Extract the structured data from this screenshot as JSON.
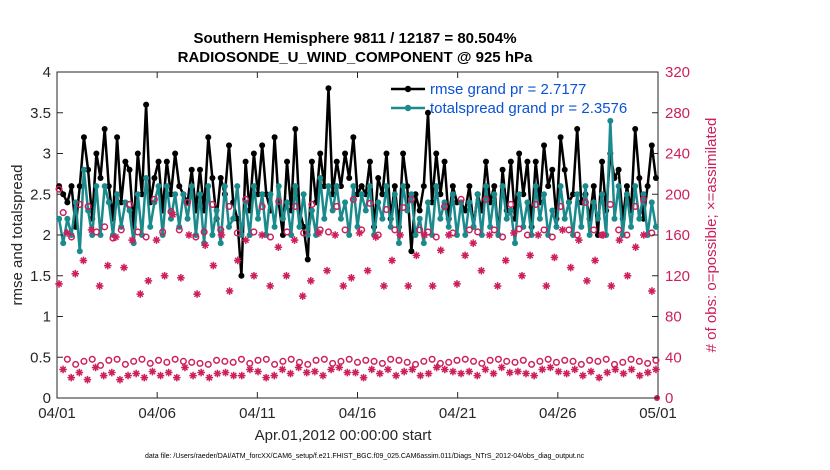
{
  "chart_data": {
    "type": "line",
    "title": "Southern Hemisphere 9811 / 12187 = 80.504%",
    "subtitle": "RADIOSONDE_U_WIND_COMPONENT @ 925 hPa",
    "xlabel": "Apr.01,2012 00:00:00 start",
    "ylabel": "rmse and totalspread",
    "ylabel_right": "# of obs: o=possible; ×=assimilated",
    "footnote": "data file: /Users/raeder/DAI/ATM_forcXX/CAM6_setup/f.e21.FHIST_BGC.f09_025.CAM6assim.011/Diags_NTrS_2012-04/obs_diag_output.nc",
    "xlim": [
      0,
      30
    ],
    "ylim": [
      0,
      4
    ],
    "ylim_right": [
      0,
      320
    ],
    "x_tick_labels": [
      "04/01",
      "04/06",
      "04/11",
      "04/16",
      "04/21",
      "04/26",
      "05/01"
    ],
    "y_tick_labels": [
      "0",
      "0.5",
      "1",
      "1.5",
      "2",
      "2.5",
      "3",
      "3.5",
      "4"
    ],
    "y_right_tick_labels": [
      "0",
      "40",
      "80",
      "120",
      "160",
      "200",
      "240",
      "280",
      "320"
    ],
    "legend": [
      {
        "label": "rmse grand pr = 2.7177",
        "color": "#000000"
      },
      {
        "label": "totalspread grand pr = 2.3576",
        "color": "#1a8a8c"
      }
    ],
    "series": [
      {
        "name": "rmse",
        "axis": "left",
        "color": "#000000",
        "marker": "filled-circle",
        "values": [
          2.6,
          2.5,
          2.4,
          2.6,
          2.1,
          2.6,
          3.2,
          2.8,
          2.2,
          3.0,
          2.7,
          3.3,
          2.6,
          2.2,
          3.2,
          2.4,
          2.9,
          2.8,
          2.1,
          3.0,
          2.5,
          3.6,
          2.4,
          2.7,
          2.9,
          2.3,
          2.9,
          2.5,
          3.0,
          2.6,
          2.5,
          2.4,
          2.8,
          2.3,
          2.8,
          2.3,
          3.2,
          2.7,
          2.2,
          2.7,
          2.5,
          3.1,
          2.4,
          2.2,
          1.5,
          2.9,
          2.3,
          3.0,
          2.5,
          3.1,
          2.5,
          2.3,
          3.2,
          2.4,
          2.0,
          2.9,
          2.3,
          3.3,
          2.3,
          2.1,
          1.7,
          2.9,
          2.4,
          3.0,
          2.6,
          3.8,
          2.5,
          2.9,
          2.6,
          3.0,
          2.7,
          3.2,
          2.5,
          2.6,
          2.5,
          2.9,
          2.1,
          2.7,
          2.5,
          3.0,
          2.2,
          2.6,
          2.1,
          3.0,
          2.6,
          1.8,
          2.5,
          2.3,
          2.6,
          3.5,
          2.4,
          3.0,
          2.5,
          2.9,
          2.2,
          2.6,
          2.4,
          2.4,
          2.3,
          2.6,
          2.1,
          2.5,
          2.3,
          2.9,
          2.4,
          2.6,
          2.0,
          2.8,
          2.3,
          2.9,
          2.2,
          3.0,
          2.5,
          2.9,
          2.1,
          2.9,
          2.4,
          3.1,
          2.6,
          2.8,
          2.2,
          3.2,
          2.8,
          2.4,
          2.5,
          3.3,
          2.4,
          2.5,
          2.2,
          2.6,
          2.0,
          2.9,
          2.3,
          3.0,
          2.7,
          2.8,
          2.2,
          2.6,
          2.3,
          3.3,
          2.7,
          2.2,
          2.6,
          3.1,
          2.7
        ],
        "markers_every": 1
      },
      {
        "name": "totalspread",
        "axis": "left",
        "color": "#1a8a8c",
        "marker": "filled-circle",
        "values": [
          2.2,
          1.9,
          2.2,
          2.0,
          2.4,
          1.8,
          2.8,
          2.3,
          2.0,
          2.6,
          2.0,
          2.6,
          2.4,
          2.0,
          2.5,
          2.1,
          2.4,
          2.3,
          1.9,
          2.5,
          2.0,
          2.7,
          2.1,
          2.4,
          2.6,
          2.0,
          2.6,
          2.2,
          2.5,
          2.1,
          2.5,
          2.2,
          2.6,
          2.0,
          2.5,
          1.9,
          2.6,
          2.0,
          2.3,
          1.9,
          2.6,
          2.1,
          2.2,
          2.6,
          2.0,
          2.4,
          2.0,
          2.6,
          2.2,
          2.5,
          2.0,
          2.5,
          2.1,
          2.6,
          2.2,
          2.4,
          2.0,
          2.6,
          2.1,
          2.5,
          2.0,
          2.3,
          2.0,
          2.7,
          2.2,
          2.6,
          2.3,
          2.6,
          2.2,
          2.4,
          2.0,
          2.6,
          2.1,
          2.5,
          2.3,
          2.6,
          2.0,
          2.4,
          2.2,
          2.6,
          2.1,
          2.5,
          1.9,
          2.6,
          2.3,
          2.5,
          2.0,
          2.2,
          1.9,
          2.4,
          2.0,
          2.6,
          2.2,
          2.4,
          2.1,
          2.5,
          2.0,
          2.4,
          2.0,
          2.4,
          2.1,
          2.5,
          2.0,
          2.6,
          2.1,
          2.5,
          2.0,
          2.6,
          2.2,
          2.3,
          1.9,
          2.5,
          2.1,
          2.4,
          2.0,
          2.6,
          2.2,
          2.5,
          2.0,
          2.3,
          2.1,
          2.6,
          2.2,
          2.4,
          2.0,
          2.5,
          2.1,
          2.6,
          2.0,
          2.4,
          2.2,
          2.5,
          2.0,
          3.4,
          2.2,
          2.6,
          2.0,
          2.5,
          2.1,
          2.6,
          2.2,
          2.5,
          2.0,
          2.4,
          2.1
        ],
        "markers_every": 1
      },
      {
        "name": "obs possible",
        "axis": "right",
        "color": "#cc1f5c",
        "marker": "circle",
        "values": [
          205,
          182,
          38,
          158,
          33,
          190,
          36,
          188,
          38,
          163,
          32,
          168,
          37,
          157,
          38,
          165,
          33,
          190,
          36,
          163,
          38,
          158,
          34,
          195,
          37,
          163,
          35,
          183,
          38,
          165,
          36,
          192,
          35,
          158,
          34,
          163,
          33,
          190,
          37,
          165,
          36,
          188,
          35,
          162,
          38,
          195,
          34,
          163,
          37,
          188,
          38,
          158,
          33,
          193,
          36,
          163,
          38,
          188,
          35,
          162,
          33,
          190,
          37,
          165,
          38,
          163,
          34,
          188,
          36,
          165,
          38,
          195,
          35,
          165,
          37,
          191,
          36,
          160,
          34,
          185,
          38,
          165,
          37,
          187,
          35,
          195,
          33,
          165,
          36,
          163,
          38,
          158,
          34,
          188,
          35,
          162,
          37,
          195,
          38,
          165,
          36,
          163,
          34,
          195,
          37,
          165,
          38,
          158,
          36,
          190,
          35,
          166,
          37,
          160,
          33,
          190,
          36,
          165,
          38,
          158,
          35,
          188,
          37,
          165,
          36,
          160,
          33,
          192,
          37,
          165,
          36,
          160,
          38,
          190,
          33,
          165,
          35,
          160,
          38,
          188,
          36,
          195,
          34,
          162,
          37
        ]
      },
      {
        "name": "obs assimilated",
        "axis": "right",
        "color": "#cc1f5c",
        "marker": "asterisk",
        "values": [
          112,
          28,
          162,
          20,
          122,
          25,
          135,
          18,
          165,
          30,
          110,
          22,
          130,
          25,
          158,
          18,
          128,
          22,
          155,
          24,
          102,
          20,
          115,
          26,
          155,
          22,
          120,
          25,
          180,
          20,
          118,
          30,
          160,
          22,
          102,
          25,
          150,
          20,
          130,
          24,
          160,
          25,
          105,
          22,
          135,
          22,
          155,
          28,
          120,
          26,
          160,
          20,
          110,
          22,
          148,
          28,
          120,
          24,
          155,
          30,
          100,
          25,
          115,
          26,
          162,
          22,
          125,
          28,
          160,
          30,
          110,
          25,
          118,
          25,
          162,
          20,
          125,
          28,
          158,
          24,
          110,
          28,
          135,
          22,
          160,
          26,
          110,
          28,
          140,
          22,
          160,
          24,
          110,
          30,
          145,
          28,
          160,
          26,
          112,
          24,
          140,
          26,
          152,
          22,
          125,
          28,
          160,
          24,
          110,
          30,
          135,
          25,
          162,
          26,
          120,
          24,
          140,
          22,
          160,
          28,
          110,
          30,
          138,
          26,
          165,
          24,
          128,
          28,
          155,
          22,
          115,
          26,
          135,
          20,
          160,
          25,
          110,
          28,
          155,
          24,
          120,
          28,
          148,
          22,
          160,
          25,
          105,
          28
        ]
      }
    ]
  }
}
